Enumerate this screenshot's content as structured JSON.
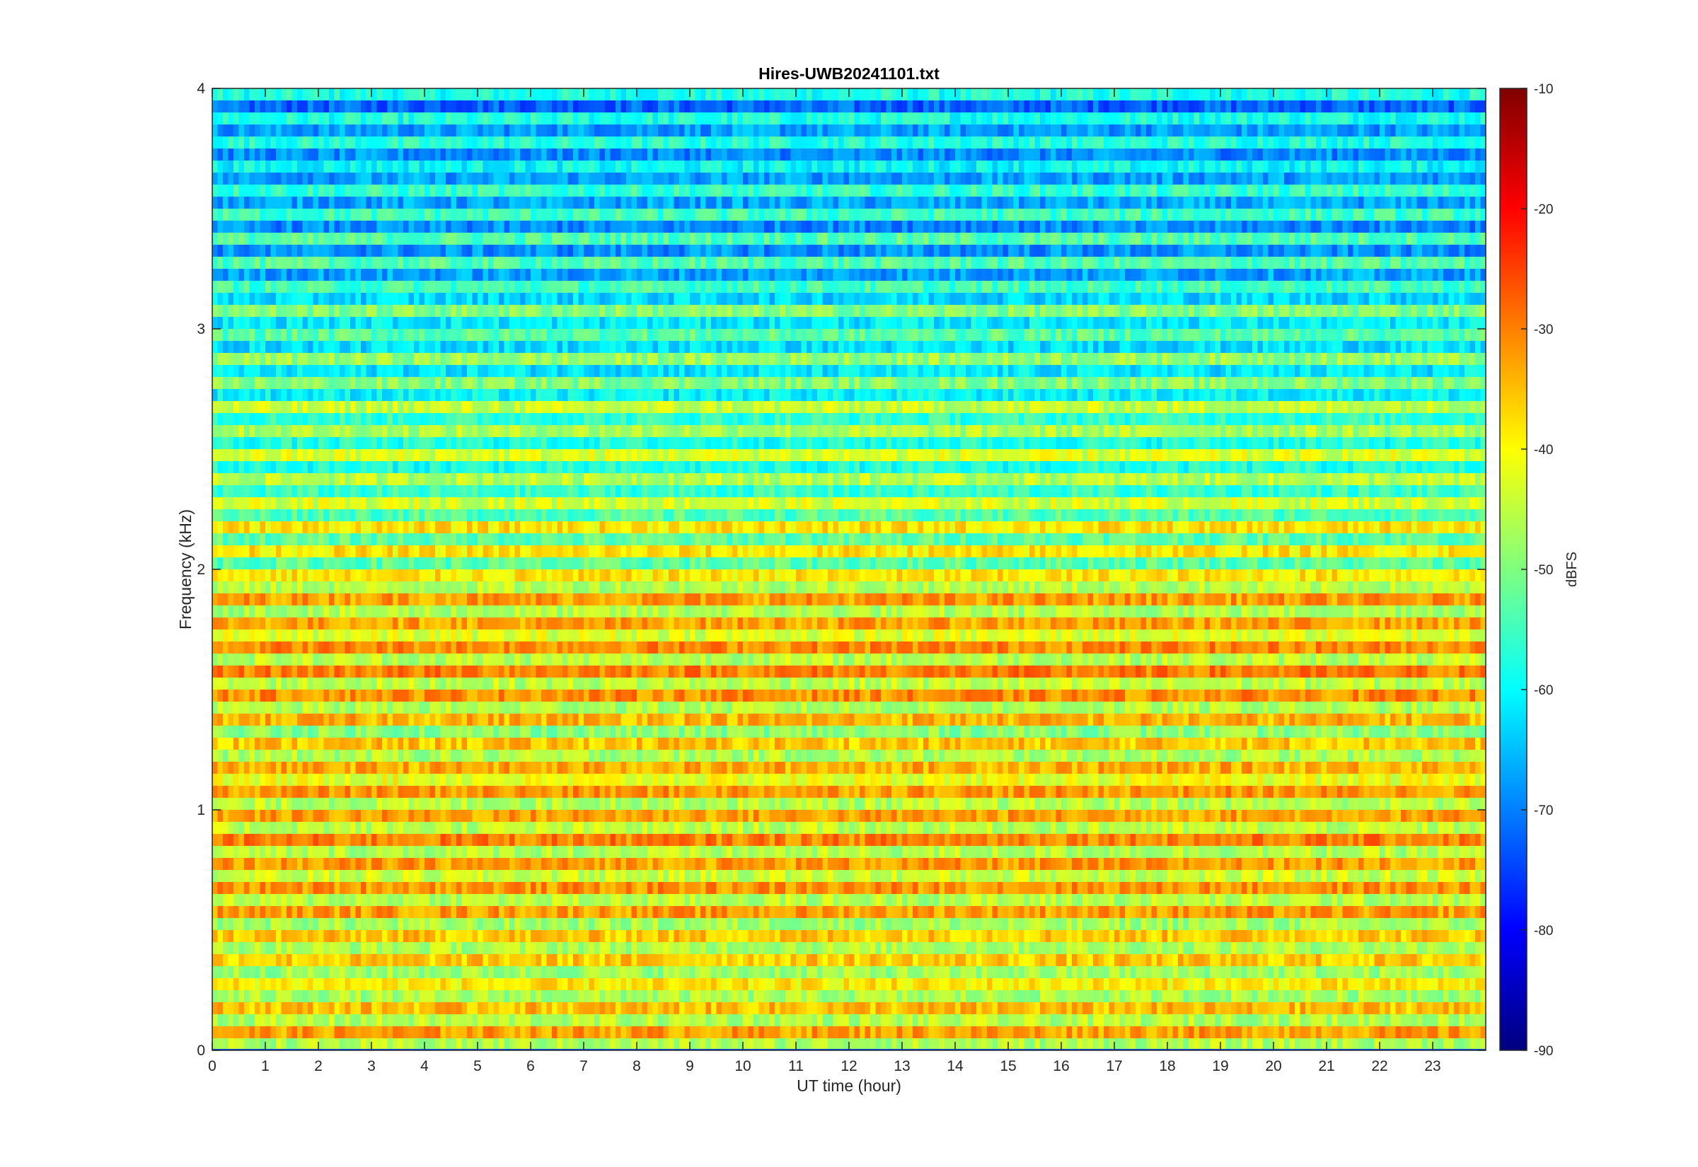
{
  "chart_data": {
    "type": "heatmap",
    "title": "Hires-UWB20241101.txt",
    "xlabel": "UT time (hour)",
    "ylabel": "Frequency (kHz)",
    "xlim": [
      0,
      24
    ],
    "ylim": [
      0,
      4
    ],
    "x_ticks": [
      0,
      1,
      2,
      3,
      4,
      5,
      6,
      7,
      8,
      9,
      10,
      11,
      12,
      13,
      14,
      15,
      16,
      17,
      18,
      19,
      20,
      21,
      22,
      23
    ],
    "y_ticks": [
      0,
      1,
      2,
      3,
      4
    ],
    "colormap": "jet",
    "colorbar": {
      "label": "dBFS",
      "range": [
        -90,
        -10
      ],
      "ticks": [
        -90,
        -80,
        -70,
        -60,
        -50,
        -40,
        -30,
        -20,
        -10
      ]
    },
    "grid": false,
    "band_levels_dbfs": [
      {
        "freq_khz": 0.05,
        "level": -38
      },
      {
        "freq_khz": 0.35,
        "level": -42
      },
      {
        "freq_khz": 0.55,
        "level": -40
      },
      {
        "freq_khz": 0.65,
        "level": -36
      },
      {
        "freq_khz": 1.05,
        "level": -36
      },
      {
        "freq_khz": 1.35,
        "level": -41
      },
      {
        "freq_khz": 1.55,
        "level": -35
      },
      {
        "freq_khz": 1.75,
        "level": -38
      },
      {
        "freq_khz": 1.85,
        "level": -38
      },
      {
        "freq_khz": 2.0,
        "level": -44
      },
      {
        "freq_khz": 2.5,
        "level": -50
      },
      {
        "freq_khz": 3.0,
        "level": -56
      },
      {
        "freq_khz": 3.5,
        "level": -62
      },
      {
        "freq_khz": 3.9,
        "level": -64
      }
    ]
  }
}
